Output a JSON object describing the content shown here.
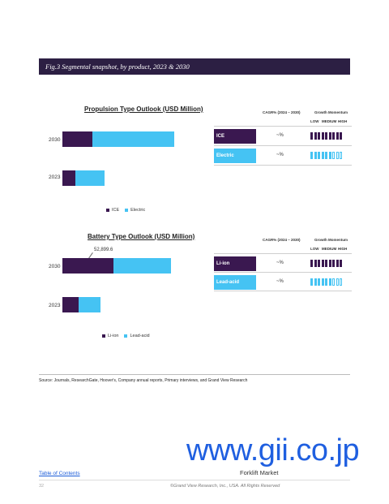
{
  "figure": {
    "caption": "Fig.3  Segmental snapshot, by product, 2023 & 2030"
  },
  "column_headers": {
    "cagr": "CAGR% (2024 – 2030)",
    "momentum": "Growth Momentum",
    "low": "LOW",
    "medium": "MEDIUM",
    "high": "HIGH"
  },
  "chart_data": [
    {
      "type": "bar",
      "orientation": "horizontal",
      "stacked": true,
      "title": "Propulsion Type Outlook (USD Million)",
      "categories": [
        "2030",
        "2023"
      ],
      "series": [
        {
          "name": "ICE",
          "color": "#3a1850",
          "values": [
            37,
            16
          ]
        },
        {
          "name": "Electric",
          "color": "#45c3f3",
          "values": [
            101,
            36
          ]
        }
      ],
      "legend": [
        "ICE",
        "Electric"
      ],
      "legend_position": "bottom"
    },
    {
      "type": "bar",
      "orientation": "horizontal",
      "stacked": true,
      "title": "Battery Type Outlook (USD Million)",
      "categories": [
        "2030",
        "2023"
      ],
      "series": [
        {
          "name": "Li-ion",
          "color": "#3a1850",
          "values": [
            52899.6,
            17000
          ]
        },
        {
          "name": "Lead-acid",
          "color": "#45c3f3",
          "values": [
            60000,
            23000
          ]
        }
      ],
      "annotation": "52,899.6",
      "legend": [
        "Li-ion",
        "Lead-acid"
      ],
      "legend_position": "bottom"
    }
  ],
  "segment_tables": [
    {
      "rows": [
        {
          "label": "ICE",
          "cagr": "~%",
          "style": "dark",
          "momentum": 9
        },
        {
          "label": "Electric",
          "cagr": "~%",
          "style": "light",
          "momentum": 6
        }
      ]
    },
    {
      "rows": [
        {
          "label": "Li-ion",
          "cagr": "~%",
          "style": "dark",
          "momentum": 9
        },
        {
          "label": "Lead-acid",
          "cagr": "~%",
          "style": "light",
          "momentum": 6
        }
      ]
    }
  ],
  "source": "Source: Journals, ResearchGate, Hoover's, Company annual reports, Primary interviews, and Grand View Research",
  "watermark": "www.gii.co.jp",
  "footer": {
    "toc": "Table of Contents",
    "market": "Forklift Market",
    "page": "32",
    "copyright": "©Grand View Research, Inc., USA. All Rights Reserved"
  },
  "colors": {
    "dark": "#3a1850",
    "light": "#45c3f3",
    "header": "#2c1f43"
  }
}
